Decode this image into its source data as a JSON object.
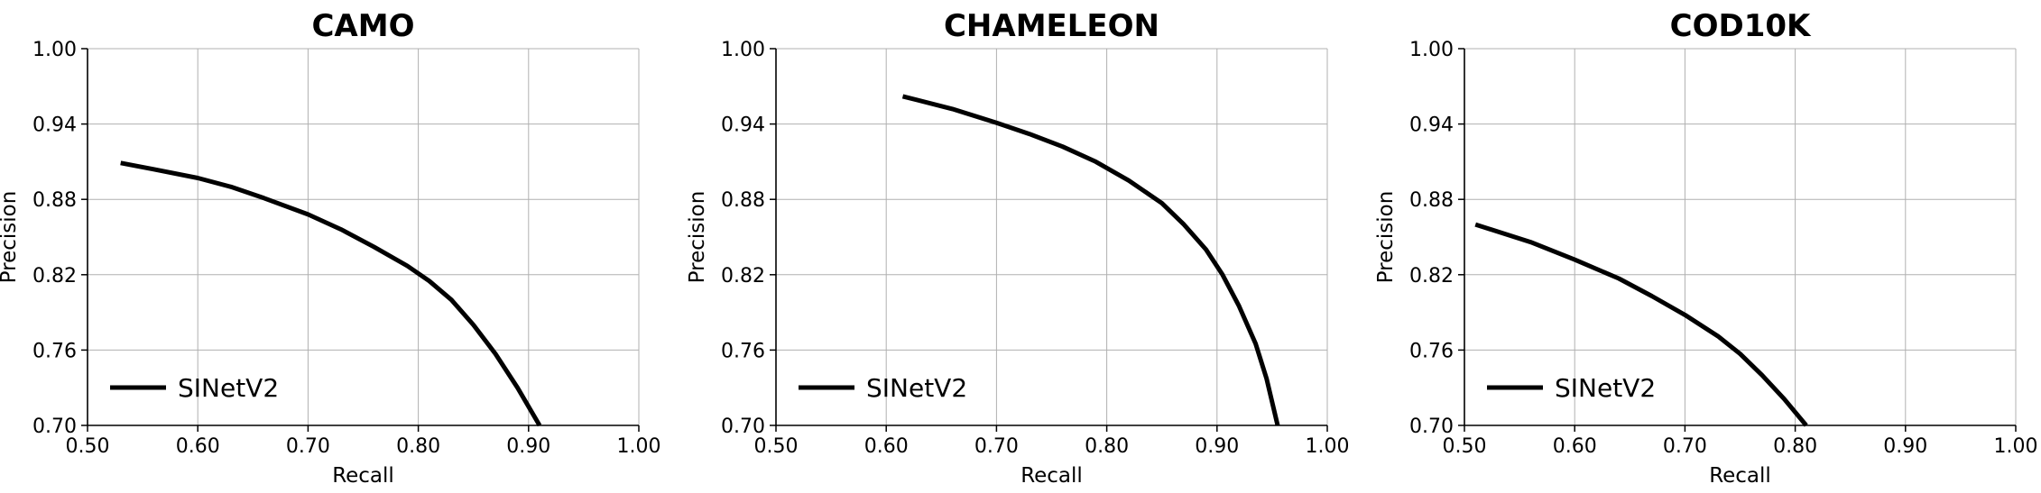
{
  "chart_data": [
    {
      "type": "line",
      "title": "CAMO",
      "xlabel": "Recall",
      "ylabel": "Precision",
      "xlim": [
        0.5,
        1.0
      ],
      "ylim": [
        0.7,
        1.0
      ],
      "xticks": [
        "0.50",
        "0.60",
        "0.70",
        "0.80",
        "0.90",
        "1.00"
      ],
      "yticks": [
        "1.00",
        "0.94",
        "0.88",
        "0.82",
        "0.76",
        "0.70"
      ],
      "grid": true,
      "legend": "lower-left",
      "series": [
        {
          "name": "SINetV2",
          "color": "#000000",
          "x": [
            0.53,
            0.56,
            0.6,
            0.63,
            0.66,
            0.7,
            0.73,
            0.76,
            0.79,
            0.81,
            0.83,
            0.85,
            0.87,
            0.89,
            0.91
          ],
          "y": [
            0.909,
            0.904,
            0.897,
            0.89,
            0.881,
            0.868,
            0.856,
            0.842,
            0.827,
            0.815,
            0.8,
            0.78,
            0.757,
            0.73,
            0.7
          ]
        }
      ]
    },
    {
      "type": "line",
      "title": "CHAMELEON",
      "xlabel": "Recall",
      "ylabel": "Precision",
      "xlim": [
        0.5,
        1.0
      ],
      "ylim": [
        0.7,
        1.0
      ],
      "xticks": [
        "0.50",
        "0.60",
        "0.70",
        "0.80",
        "0.90",
        "1.00"
      ],
      "yticks": [
        "1.00",
        "0.94",
        "0.88",
        "0.82",
        "0.76",
        "0.70"
      ],
      "grid": true,
      "legend": "lower-left",
      "series": [
        {
          "name": "SINetV2",
          "color": "#000000",
          "x": [
            0.615,
            0.66,
            0.7,
            0.73,
            0.76,
            0.79,
            0.82,
            0.85,
            0.87,
            0.89,
            0.905,
            0.92,
            0.935,
            0.945,
            0.955
          ],
          "y": [
            0.962,
            0.952,
            0.941,
            0.932,
            0.922,
            0.91,
            0.895,
            0.877,
            0.86,
            0.84,
            0.82,
            0.795,
            0.765,
            0.737,
            0.7
          ]
        }
      ]
    },
    {
      "type": "line",
      "title": "COD10K",
      "xlabel": "Recall",
      "ylabel": "Precision",
      "xlim": [
        0.5,
        1.0
      ],
      "ylim": [
        0.7,
        1.0
      ],
      "xticks": [
        "0.50",
        "0.60",
        "0.70",
        "0.80",
        "0.90",
        "1.00"
      ],
      "yticks": [
        "1.00",
        "0.94",
        "0.88",
        "0.82",
        "0.76",
        "0.70"
      ],
      "grid": true,
      "legend": "lower-left",
      "series": [
        {
          "name": "SINetV2",
          "color": "#000000",
          "x": [
            0.51,
            0.56,
            0.6,
            0.64,
            0.67,
            0.7,
            0.73,
            0.75,
            0.77,
            0.79,
            0.81
          ],
          "y": [
            0.86,
            0.846,
            0.832,
            0.817,
            0.803,
            0.788,
            0.771,
            0.757,
            0.74,
            0.721,
            0.7
          ]
        }
      ]
    }
  ]
}
